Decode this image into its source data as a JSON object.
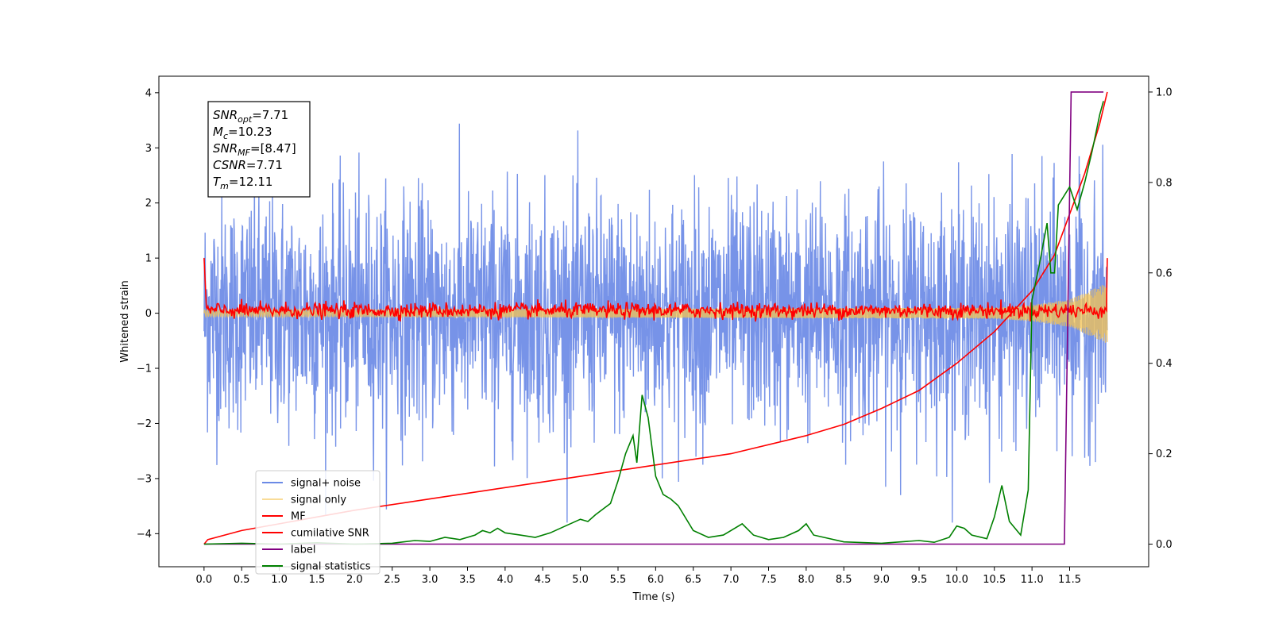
{
  "chart_data": {
    "type": "line",
    "xlabel": "Time (s)",
    "ylabel": "Whitened strain",
    "xlim": [
      -0.6,
      12.55
    ],
    "ylim": [
      -4.6,
      4.3
    ],
    "ylim_right": [
      -0.05,
      1.035
    ],
    "x_ticks": [
      0.0,
      0.5,
      1.0,
      1.5,
      2.0,
      2.5,
      3.0,
      3.5,
      4.0,
      4.5,
      5.0,
      5.5,
      6.0,
      6.5,
      7.0,
      7.5,
      8.0,
      8.5,
      9.0,
      9.5,
      10.0,
      10.5,
      11.0,
      11.5
    ],
    "x_tick_labels": [
      "0.0",
      "0.5",
      "1.0",
      "1.5",
      "2.0",
      "2.5",
      "3.0",
      "3.5",
      "4.0",
      "4.5",
      "5.0",
      "5.5",
      "6.0",
      "6.5",
      "7.0",
      "7.5",
      "8.0",
      "8.5",
      "9.0",
      "9.5",
      "10.0",
      "10.5",
      "11.0",
      "11.5"
    ],
    "y_ticks": [
      -4,
      -3,
      -2,
      -1,
      0,
      1,
      2,
      3,
      4
    ],
    "y_tick_labels": [
      "−4",
      "−3",
      "−2",
      "−1",
      "0",
      "1",
      "2",
      "3",
      "4"
    ],
    "y_right_ticks": [
      0.0,
      0.2,
      0.4,
      0.6,
      0.8,
      1.0
    ],
    "y_right_tick_labels": [
      "0.0",
      "0.2",
      "0.4",
      "0.6",
      "0.8",
      "1.0"
    ],
    "grid": false,
    "legend_position": "lower-left",
    "series": [
      {
        "name": "signal+ noise",
        "axis": "left",
        "color": "#6b8ae6",
        "description": "noise band",
        "x_range": [
          0.0,
          12.0
        ],
        "typical_range": [
          -2.5,
          2.5
        ],
        "peak_range": [
          -3.8,
          3.9
        ]
      },
      {
        "name": "signal only",
        "axis": "left",
        "color": "#f5c451",
        "envelope": [
          {
            "x": 0.0,
            "amp": 0.06
          },
          {
            "x": 10.5,
            "amp": 0.1
          },
          {
            "x": 11.0,
            "amp": 0.15
          },
          {
            "x": 11.5,
            "amp": 0.25
          },
          {
            "x": 12.0,
            "amp": 0.55
          }
        ]
      },
      {
        "name": "MF",
        "axis": "left",
        "color": "#ff0000",
        "typical_range": [
          -0.15,
          0.3
        ],
        "start_value": 1.0,
        "end_value": 1.0
      },
      {
        "name": "cumilative SNR",
        "axis": "right",
        "color": "#ff0000",
        "points": [
          [
            0.0,
            0.0
          ],
          [
            0.05,
            0.01
          ],
          [
            0.5,
            0.03
          ],
          [
            1.0,
            0.045
          ],
          [
            1.5,
            0.06
          ],
          [
            2.0,
            0.075
          ],
          [
            3.0,
            0.1
          ],
          [
            4.0,
            0.125
          ],
          [
            5.0,
            0.15
          ],
          [
            6.0,
            0.175
          ],
          [
            7.0,
            0.2
          ],
          [
            8.0,
            0.24
          ],
          [
            8.5,
            0.265
          ],
          [
            9.0,
            0.3
          ],
          [
            9.5,
            0.34
          ],
          [
            10.0,
            0.4
          ],
          [
            10.5,
            0.47
          ],
          [
            11.0,
            0.56
          ],
          [
            11.3,
            0.64
          ],
          [
            11.5,
            0.73
          ],
          [
            11.7,
            0.82
          ],
          [
            11.9,
            0.93
          ],
          [
            12.0,
            1.0
          ]
        ]
      },
      {
        "name": "label",
        "axis": "right",
        "color": "#800080",
        "points": [
          [
            0.0,
            0.0
          ],
          [
            11.43,
            0.0
          ],
          [
            11.52,
            1.0
          ],
          [
            11.95,
            1.0
          ]
        ]
      },
      {
        "name": "signal statistics",
        "axis": "right",
        "color": "#008000",
        "points": [
          [
            0.0,
            0.0
          ],
          [
            0.5,
            0.002
          ],
          [
            1.0,
            0.0
          ],
          [
            1.5,
            0.003
          ],
          [
            2.0,
            0.0
          ],
          [
            2.5,
            0.002
          ],
          [
            2.8,
            0.008
          ],
          [
            3.0,
            0.006
          ],
          [
            3.2,
            0.015
          ],
          [
            3.4,
            0.01
          ],
          [
            3.6,
            0.02
          ],
          [
            3.7,
            0.03
          ],
          [
            3.8,
            0.025
          ],
          [
            3.9,
            0.035
          ],
          [
            4.0,
            0.025
          ],
          [
            4.2,
            0.02
          ],
          [
            4.4,
            0.015
          ],
          [
            4.6,
            0.025
          ],
          [
            4.8,
            0.04
          ],
          [
            5.0,
            0.055
          ],
          [
            5.1,
            0.05
          ],
          [
            5.2,
            0.065
          ],
          [
            5.4,
            0.09
          ],
          [
            5.5,
            0.14
          ],
          [
            5.6,
            0.2
          ],
          [
            5.7,
            0.24
          ],
          [
            5.75,
            0.18
          ],
          [
            5.82,
            0.33
          ],
          [
            5.9,
            0.28
          ],
          [
            6.0,
            0.15
          ],
          [
            6.1,
            0.11
          ],
          [
            6.2,
            0.1
          ],
          [
            6.3,
            0.085
          ],
          [
            6.5,
            0.03
          ],
          [
            6.7,
            0.015
          ],
          [
            6.9,
            0.02
          ],
          [
            7.0,
            0.03
          ],
          [
            7.15,
            0.045
          ],
          [
            7.3,
            0.02
          ],
          [
            7.5,
            0.01
          ],
          [
            7.7,
            0.015
          ],
          [
            7.9,
            0.03
          ],
          [
            8.0,
            0.045
          ],
          [
            8.1,
            0.02
          ],
          [
            8.5,
            0.005
          ],
          [
            9.0,
            0.002
          ],
          [
            9.5,
            0.008
          ],
          [
            9.7,
            0.004
          ],
          [
            9.9,
            0.015
          ],
          [
            10.0,
            0.04
          ],
          [
            10.1,
            0.035
          ],
          [
            10.2,
            0.02
          ],
          [
            10.4,
            0.012
          ],
          [
            10.5,
            0.06
          ],
          [
            10.6,
            0.13
          ],
          [
            10.7,
            0.05
          ],
          [
            10.85,
            0.02
          ],
          [
            10.95,
            0.12
          ],
          [
            11.0,
            0.54
          ],
          [
            11.1,
            0.62
          ],
          [
            11.2,
            0.71
          ],
          [
            11.25,
            0.6
          ],
          [
            11.3,
            0.6
          ],
          [
            11.35,
            0.75
          ],
          [
            11.5,
            0.79
          ],
          [
            11.6,
            0.74
          ],
          [
            11.7,
            0.8
          ],
          [
            11.8,
            0.87
          ],
          [
            11.9,
            0.95
          ],
          [
            11.95,
            0.98
          ]
        ]
      }
    ],
    "annotations": [
      {
        "name": "SNR",
        "sub": "opt",
        "value": "=7.71"
      },
      {
        "name": "M",
        "sub": "c",
        "value": "=10.23"
      },
      {
        "name": "SNR",
        "sub": "MF",
        "value": "=[8.47]"
      },
      {
        "name": "CSNR",
        "sub": "",
        "value": "=7.71"
      },
      {
        "name": "T",
        "sub": "m",
        "value": "=12.11"
      }
    ]
  }
}
